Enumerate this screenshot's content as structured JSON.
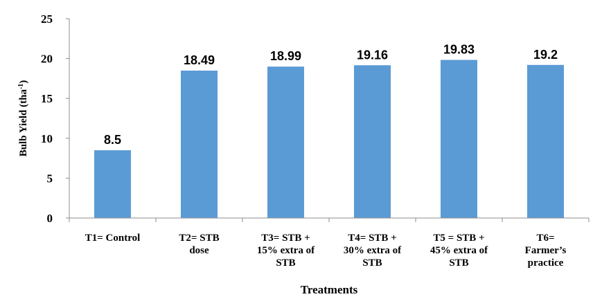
{
  "chart_data": {
    "type": "bar",
    "categories": [
      [
        "T1= Control"
      ],
      [
        "T2= STB",
        "dose"
      ],
      [
        "T3= STB +",
        "15% extra of",
        "STB"
      ],
      [
        "T4= STB +",
        "30% extra of",
        "STB"
      ],
      [
        "T5 = STB +",
        "45% extra of",
        "STB"
      ],
      [
        "T6=",
        "Farmer’s",
        "practice"
      ]
    ],
    "values": [
      8.5,
      18.49,
      18.99,
      19.16,
      19.83,
      19.2
    ],
    "value_labels": [
      "8.5",
      "18.49",
      "18.99",
      "19.16",
      "19.83",
      "19.2"
    ],
    "ylim": [
      0,
      25
    ],
    "yticks": [
      0,
      5,
      10,
      15,
      20,
      25
    ],
    "xlabel": "Treatments",
    "ylabel_main": "Bulb Yield (tha",
    "ylabel_sup": "-1",
    "ylabel_end": ")",
    "bar_color": "#5B9BD5",
    "grid": false,
    "legend": "none"
  }
}
